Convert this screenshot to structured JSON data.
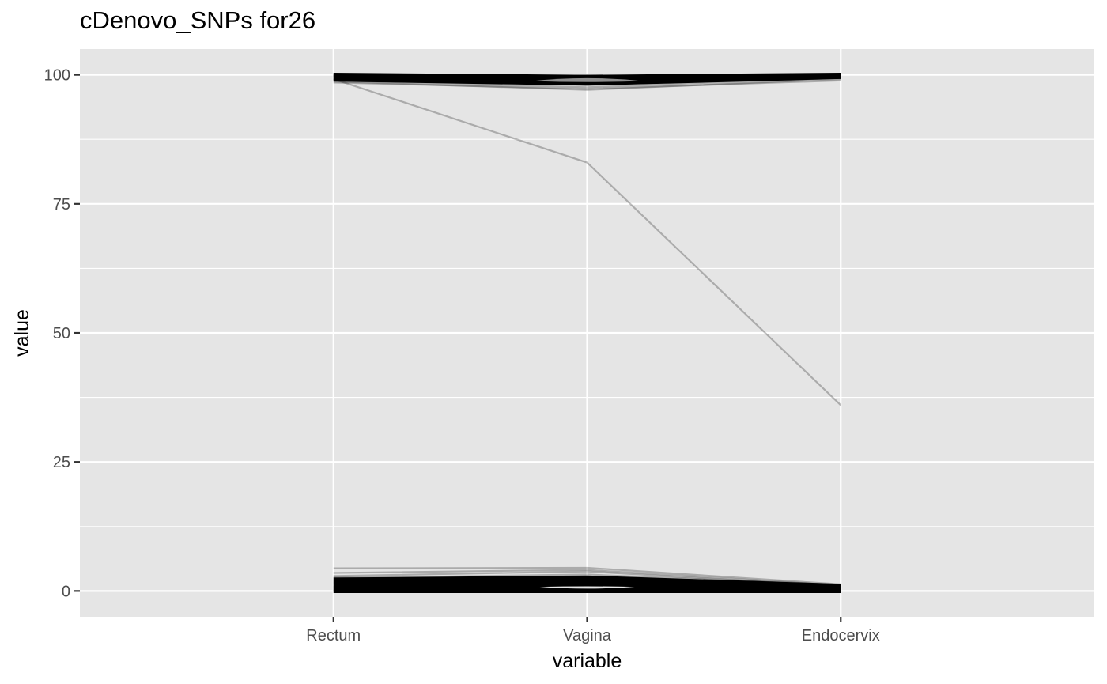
{
  "chart_data": {
    "type": "line",
    "title": "cDenovo_SNPs for26",
    "xlabel": "variable",
    "ylabel": "value",
    "categories": [
      "Rectum",
      "Vagina",
      "Endocervix"
    ],
    "y_ticks": [
      0,
      25,
      50,
      75,
      100
    ],
    "ylim": [
      -5,
      105
    ],
    "grid": true,
    "panel_background": "#e5e5e5",
    "grid_color": "#ffffff",
    "line_color": "#000000",
    "line_alpha": 0.25,
    "series": [
      {
        "values": [
          99.2,
          83.0,
          36.0
        ]
      },
      {
        "values": [
          99.9,
          99.8,
          99.9
        ]
      },
      {
        "values": [
          99.8,
          99.6,
          99.8
        ]
      },
      {
        "values": [
          99.7,
          99.4,
          99.9
        ]
      },
      {
        "values": [
          99.5,
          99.0,
          99.7
        ]
      },
      {
        "values": [
          99.3,
          98.6,
          99.6
        ]
      },
      {
        "values": [
          99.1,
          98.2,
          99.5
        ]
      },
      {
        "values": [
          98.9,
          97.6,
          99.4
        ]
      },
      {
        "values": [
          98.7,
          97.1,
          99.2
        ]
      },
      {
        "values": [
          99.6,
          99.2,
          99.9
        ]
      },
      {
        "values": [
          99.4,
          98.8,
          99.8
        ]
      },
      {
        "values": [
          98.5,
          97.3,
          98.9
        ]
      },
      {
        "values": [
          99.0,
          99.9,
          99.6
        ]
      },
      {
        "values": [
          99.8,
          99.7,
          99.3
        ]
      },
      {
        "values": [
          99.2,
          98.0,
          99.7
        ]
      },
      {
        "values": [
          4.4,
          4.5,
          1.3
        ]
      },
      {
        "values": [
          3.5,
          4.1,
          1.1
        ]
      },
      {
        "values": [
          2.9,
          3.8,
          0.9
        ]
      },
      {
        "values": [
          2.5,
          3.2,
          1.2
        ]
      },
      {
        "values": [
          2.0,
          2.8,
          0.8
        ]
      },
      {
        "values": [
          1.6,
          2.3,
          0.7
        ]
      },
      {
        "values": [
          1.2,
          1.8,
          0.5
        ]
      },
      {
        "values": [
          0.9,
          1.4,
          0.4
        ]
      },
      {
        "values": [
          0.6,
          1.0,
          0.3
        ]
      },
      {
        "values": [
          0.3,
          0.6,
          0.2
        ]
      },
      {
        "values": [
          0.1,
          0.3,
          0.1
        ]
      },
      {
        "values": [
          0.0,
          0.1,
          0.0
        ]
      },
      {
        "values": [
          1.8,
          0.9,
          1.0
        ]
      },
      {
        "values": [
          2.2,
          1.2,
          0.6
        ]
      },
      {
        "values": [
          0.8,
          2.0,
          1.1
        ]
      },
      {
        "values": [
          1.4,
          2.6,
          0.2
        ]
      },
      {
        "values": [
          0.4,
          0.2,
          0.9
        ]
      },
      {
        "values": [
          2.7,
          1.6,
          0.1
        ]
      }
    ]
  }
}
